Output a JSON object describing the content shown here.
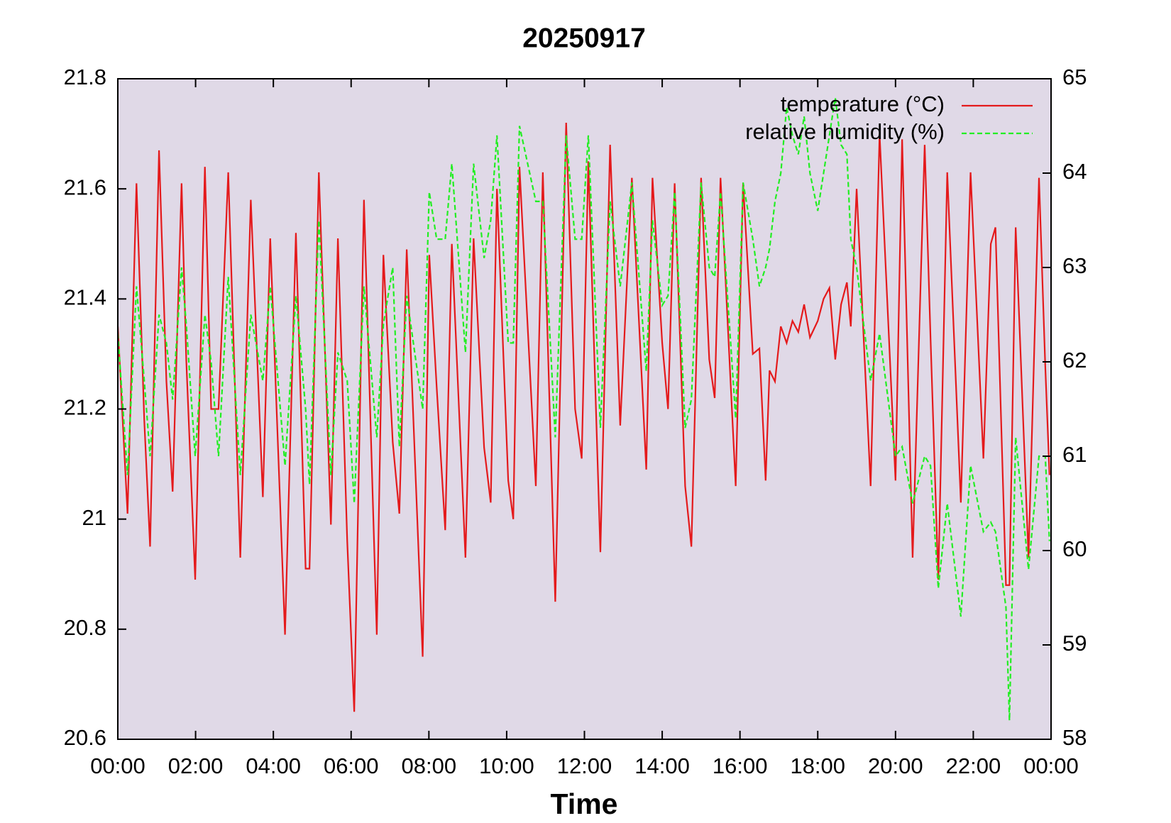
{
  "chart_data": {
    "type": "line",
    "title": "20250917",
    "x_label": "Time",
    "xlim": [
      0,
      24
    ],
    "xticks": [
      {
        "value": 0,
        "label": "00:00"
      },
      {
        "value": 2,
        "label": "02:00"
      },
      {
        "value": 4,
        "label": "04:00"
      },
      {
        "value": 6,
        "label": "06:00"
      },
      {
        "value": 8,
        "label": "08:00"
      },
      {
        "value": 10,
        "label": "10:00"
      },
      {
        "value": 12,
        "label": "12:00"
      },
      {
        "value": 14,
        "label": "14:00"
      },
      {
        "value": 16,
        "label": "16:00"
      },
      {
        "value": 18,
        "label": "18:00"
      },
      {
        "value": 20,
        "label": "20:00"
      },
      {
        "value": 22,
        "label": "22:00"
      },
      {
        "value": 24,
        "label": "00:00"
      }
    ],
    "ylim": [
      20.6,
      21.8
    ],
    "yticks": [
      20.6,
      20.8,
      21,
      21.2,
      21.4,
      21.6,
      21.8
    ],
    "y2lim": [
      58,
      65
    ],
    "y2ticks": [
      58,
      59,
      60,
      61,
      62,
      63,
      64,
      65
    ],
    "legend": "top right",
    "background": "#e0d9e7",
    "x": [
      0.0,
      0.25,
      0.48,
      0.68,
      0.83,
      1.06,
      1.25,
      1.41,
      1.64,
      1.76,
      1.99,
      2.24,
      2.4,
      2.59,
      2.84,
      3.15,
      3.42,
      3.73,
      3.92,
      4.3,
      4.58,
      4.83,
      4.93,
      5.17,
      5.48,
      5.66,
      5.9,
      6.08,
      6.33,
      6.66,
      6.83,
      7.07,
      7.24,
      7.43,
      7.84,
      8.01,
      8.2,
      8.42,
      8.59,
      8.94,
      9.15,
      9.42,
      9.59,
      9.75,
      10.04,
      10.17,
      10.33,
      10.75,
      10.93,
      11.25,
      11.53,
      11.76,
      11.93,
      12.1,
      12.41,
      12.66,
      12.92,
      13.22,
      13.59,
      13.75,
      14.0,
      14.15,
      14.32,
      14.59,
      14.75,
      15.0,
      15.21,
      15.35,
      15.5,
      15.89,
      16.08,
      16.33,
      16.5,
      16.66,
      16.76,
      16.9,
      17.05,
      17.2,
      17.35,
      17.5,
      17.65,
      17.8,
      18.0,
      18.15,
      18.3,
      18.45,
      18.6,
      18.75,
      18.85,
      19.0,
      19.36,
      19.59,
      20.0,
      20.17,
      20.44,
      20.75,
      20.9,
      21.1,
      21.33,
      21.68,
      21.93,
      22.26,
      22.45,
      22.57,
      22.84,
      22.93,
      23.09,
      23.42,
      23.69,
      23.85,
      23.96
    ],
    "series": [
      {
        "name": "temperature (°C)",
        "color": "#e41a1c",
        "line_style": "solid",
        "axis": "y",
        "values": [
          21.35,
          21.01,
          21.61,
          21.18,
          20.95,
          21.67,
          21.25,
          21.05,
          21.61,
          21.29,
          20.89,
          21.64,
          21.2,
          21.2,
          21.63,
          20.93,
          21.58,
          21.04,
          21.51,
          20.79,
          21.52,
          20.91,
          20.91,
          21.63,
          20.99,
          21.51,
          20.96,
          20.65,
          21.58,
          20.79,
          21.48,
          21.14,
          21.01,
          21.49,
          20.75,
          21.48,
          21.24,
          20.98,
          21.5,
          20.93,
          21.51,
          21.13,
          21.03,
          21.6,
          21.07,
          21.0,
          21.64,
          21.06,
          21.63,
          20.85,
          21.72,
          21.2,
          21.11,
          21.65,
          20.94,
          21.68,
          21.17,
          21.62,
          21.09,
          21.62,
          21.32,
          21.2,
          21.61,
          21.06,
          20.95,
          21.62,
          21.29,
          21.22,
          21.62,
          21.06,
          21.61,
          21.3,
          21.31,
          21.07,
          21.27,
          21.25,
          21.35,
          21.32,
          21.36,
          21.34,
          21.39,
          21.33,
          21.36,
          21.4,
          21.42,
          21.29,
          21.39,
          21.43,
          21.35,
          21.6,
          21.06,
          21.7,
          21.07,
          21.69,
          20.93,
          21.68,
          21.33,
          20.89,
          21.63,
          21.03,
          21.63,
          21.11,
          21.5,
          21.53,
          20.88,
          20.88,
          21.53,
          20.93,
          21.62,
          21.28,
          21.08
        ]
      },
      {
        "name": "relative humidity (%)",
        "color": "#22ee22",
        "line_style": "dashed",
        "axis": "y2",
        "values": [
          62.3,
          60.8,
          62.8,
          61.8,
          61.0,
          62.5,
          62.2,
          61.6,
          63.0,
          62.4,
          61.0,
          62.5,
          62.0,
          61.0,
          62.9,
          60.8,
          62.5,
          61.8,
          62.8,
          60.9,
          62.7,
          61.5,
          60.7,
          63.5,
          60.8,
          62.1,
          61.8,
          60.5,
          62.8,
          61.2,
          62.4,
          63.0,
          61.1,
          62.7,
          61.5,
          63.8,
          63.3,
          63.3,
          64.1,
          62.1,
          64.1,
          63.1,
          63.5,
          64.4,
          62.2,
          62.2,
          64.5,
          63.7,
          63.7,
          61.2,
          64.4,
          63.3,
          63.3,
          64.4,
          61.3,
          63.7,
          62.8,
          63.9,
          61.9,
          63.5,
          62.6,
          62.7,
          63.8,
          61.3,
          61.6,
          63.9,
          63.0,
          62.9,
          63.8,
          61.4,
          63.9,
          63.3,
          62.8,
          63.0,
          63.2,
          63.7,
          64.0,
          64.7,
          64.4,
          64.2,
          64.6,
          64.0,
          63.6,
          64.0,
          64.4,
          64.8,
          64.3,
          64.2,
          63.3,
          63.0,
          61.8,
          62.3,
          61.0,
          61.1,
          60.5,
          61.0,
          60.9,
          59.6,
          60.5,
          59.3,
          60.9,
          60.2,
          60.3,
          60.2,
          59.4,
          58.2,
          61.2,
          59.8,
          61.0,
          61.0,
          60.1
        ]
      }
    ]
  }
}
